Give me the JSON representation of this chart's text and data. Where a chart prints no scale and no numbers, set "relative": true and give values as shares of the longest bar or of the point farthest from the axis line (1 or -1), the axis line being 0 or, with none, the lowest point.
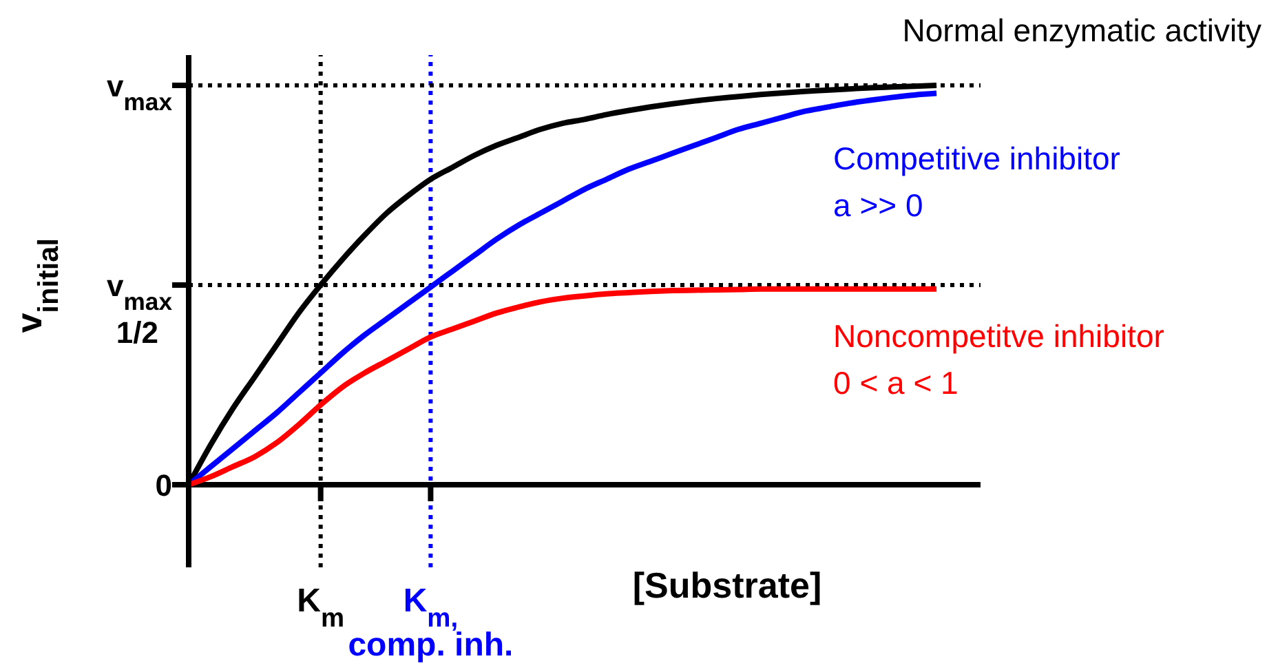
{
  "chart_data": {
    "type": "line",
    "xlabel": "[Substrate]",
    "ylabel": "v$_{initial}$",
    "relative": true,
    "categories": [
      null,
      null,
      null,
      null,
      null,
      null,
      "K$_{m}$",
      null,
      null,
      null,
      null,
      "K$_{m,}$\ncomp. inh.",
      null,
      null,
      null,
      null,
      null,
      null,
      null,
      null,
      null,
      null,
      null,
      null,
      null,
      null,
      null,
      null,
      null,
      null,
      null,
      null,
      null,
      null,
      null,
      null,
      null
    ],
    "series": [
      {
        "name": "Normal enzymatic activity",
        "color": "#000000",
        "values": [
          0,
          0.1,
          0.19,
          0.27,
          0.35,
          0.43,
          0.5,
          0.565,
          0.625,
          0.68,
          0.725,
          0.765,
          0.795,
          0.825,
          0.85,
          0.87,
          0.89,
          0.905,
          0.915,
          0.927,
          0.937,
          0.946,
          0.954,
          0.961,
          0.967,
          0.972,
          0.977,
          0.981,
          0.985,
          0.988,
          0.991,
          0.994,
          0.996,
          0.998,
          1.0,
          null,
          null
        ]
      },
      {
        "name": "Competitive inhibitor\na >> 0",
        "color": "#0000ff",
        "values": [
          0,
          0.045,
          0.09,
          0.135,
          0.18,
          0.23,
          0.28,
          0.33,
          0.375,
          0.415,
          0.455,
          0.495,
          0.535,
          0.575,
          0.615,
          0.65,
          0.68,
          0.71,
          0.74,
          0.765,
          0.79,
          0.81,
          0.83,
          0.85,
          0.87,
          0.89,
          0.905,
          0.92,
          0.935,
          0.945,
          0.955,
          0.963,
          0.97,
          0.976,
          0.98,
          null,
          null
        ]
      },
      {
        "name": "Noncompetitve inhibitor\n0 < a < 1",
        "color": "#ff0000",
        "values": [
          0,
          0.02,
          0.045,
          0.07,
          0.105,
          0.15,
          0.2,
          0.245,
          0.28,
          0.31,
          0.34,
          0.37,
          0.39,
          0.41,
          0.43,
          0.445,
          0.458,
          0.467,
          0.473,
          0.478,
          0.481,
          0.484,
          0.486,
          0.487,
          0.488,
          0.489,
          0.49,
          0.49,
          0.49,
          0.49,
          0.49,
          0.49,
          0.49,
          0.49,
          0.49,
          null,
          null
        ]
      }
    ],
    "ref_lines": [
      {
        "axis": "x",
        "value": "K$_{m}$",
        "color": "#000000",
        "line_style": "dotted"
      },
      {
        "axis": "x",
        "value": "K$_{m,}$\ncomp. inh.",
        "color": "#0000ff",
        "line_style": "dotted"
      },
      {
        "axis": "y",
        "value": 0,
        "label": "0",
        "color": "#000000",
        "line_style": "solid"
      },
      {
        "axis": "y",
        "value": 1,
        "label": "v$_{max}$",
        "color": "#000000",
        "line_style": "dotted"
      },
      {
        "axis": "y",
        "value": 0.5,
        "label": "v$_{max}$\n1/2",
        "color": "#000000",
        "line_style": "dotted"
      }
    ],
    "grid": false
  }
}
